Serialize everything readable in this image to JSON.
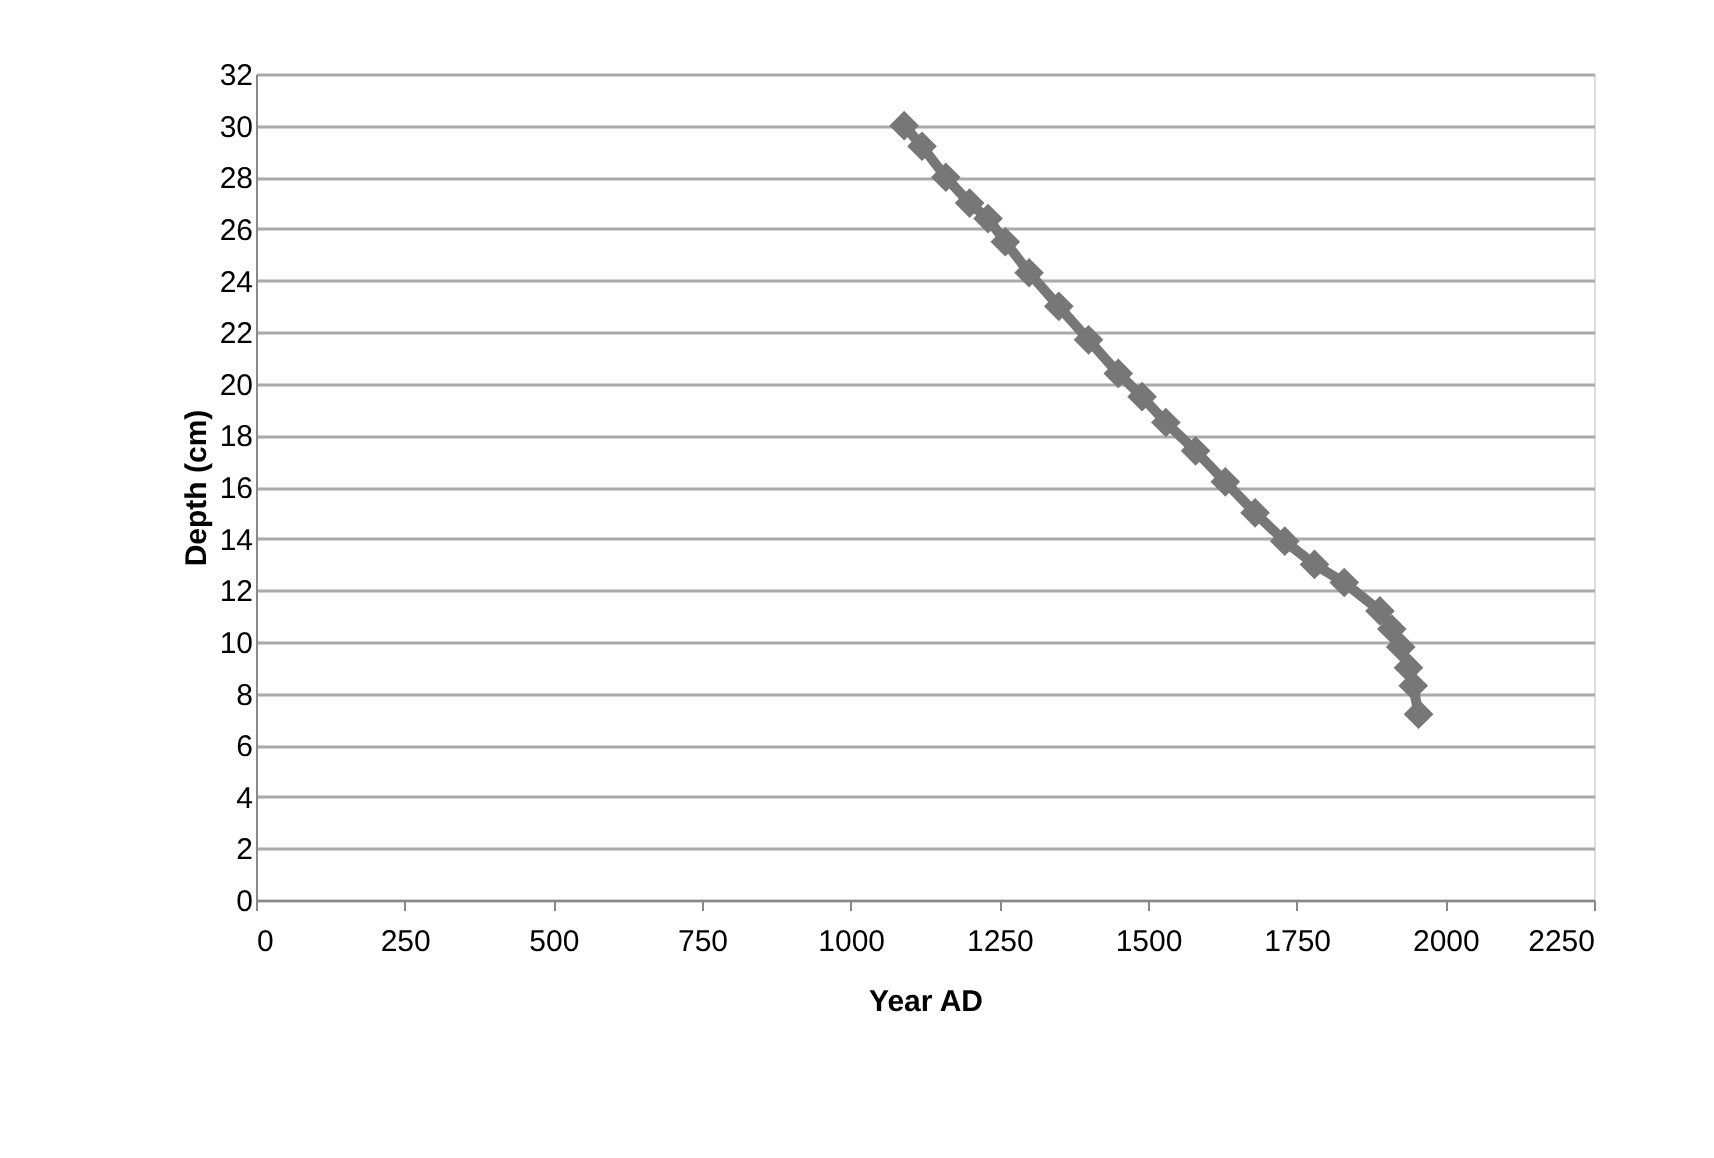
{
  "chart_data": {
    "type": "line",
    "xlabel": "Year AD",
    "ylabel": "Depth (cm)",
    "x": [
      1090,
      1120,
      1160,
      1200,
      1231,
      1260,
      1300,
      1350,
      1400,
      1450,
      1490,
      1530,
      1580,
      1630,
      1680,
      1730,
      1780,
      1830,
      1890,
      1910,
      1925,
      1938,
      1946,
      1955
    ],
    "series": [
      {
        "color": "#777777",
        "values": [
          30,
          29.2,
          28,
          27,
          26.4,
          25.5,
          24.3,
          23.0,
          21.7,
          20.4,
          19.5,
          18.5,
          17.4,
          16.2,
          15.0,
          13.9,
          13.0,
          12.3,
          11.2,
          10.5,
          9.8,
          9.0,
          8.3,
          7.2
        ]
      }
    ],
    "xlim": [
      0,
      2250
    ],
    "xticks": [
      0,
      250,
      500,
      750,
      1000,
      1250,
      1500,
      1750,
      2000,
      2250
    ],
    "ylim": [
      0,
      32
    ],
    "yticks": [
      0,
      2,
      4,
      6,
      8,
      10,
      12,
      14,
      16,
      18,
      20,
      22,
      24,
      26,
      28,
      30,
      32
    ],
    "grid": "y",
    "marker": "diamond",
    "line_style": "solid"
  }
}
